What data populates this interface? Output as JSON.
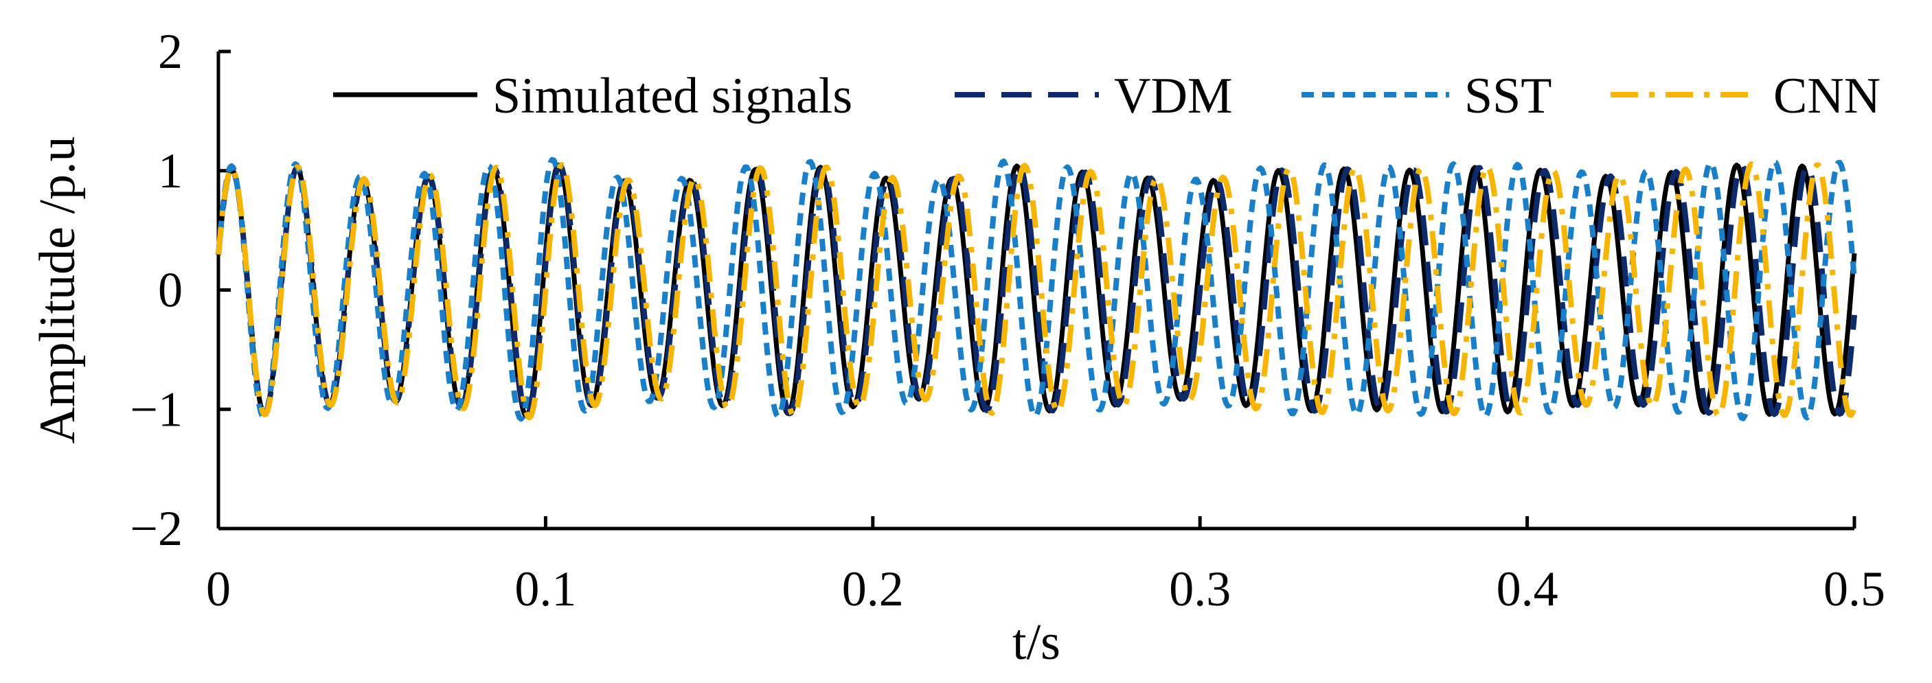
{
  "chart_data": {
    "type": "line",
    "title": "",
    "xlabel": "t/s",
    "ylabel": "Amplitude /p.u",
    "xlim": [
      0,
      0.5
    ],
    "ylim": [
      -2,
      2
    ],
    "xticks": [
      0,
      0.1,
      0.2,
      0.3,
      0.4,
      0.5
    ],
    "xtick_labels": [
      "0",
      "0.1",
      "0.2",
      "0.3",
      "0.4",
      "0.5"
    ],
    "yticks": [
      2,
      1,
      0,
      -1,
      -2
    ],
    "ytick_labels": [
      "2",
      "1",
      "0",
      "−1",
      "−2"
    ],
    "grid": false,
    "legend_position": "top",
    "signal_model": {
      "description": "approximately 50 Hz oscillation, amplitude about 0.9–1.1 p.u., 0–0.5 s",
      "sample_step": 0.0005,
      "frequency_hz": 50,
      "phase_rad": 0.3,
      "amplitude_peaks": [
        1.0,
        1.05,
        0.92,
        0.94,
        1.0,
        1.08,
        0.92,
        0.9,
        1.0,
        1.05,
        0.95,
        0.9,
        1.05,
        1.0,
        0.95,
        0.9,
        1.0,
        1.02,
        1.0,
        1.03,
        1.02,
        0.95,
        0.97,
        1.05,
        1.04
      ]
    },
    "series": [
      {
        "name": "Simulated signals",
        "color": "#000000",
        "style": "solid",
        "time_shift_s": 0.0,
        "amp_scale": 1.0
      },
      {
        "name": "VDM",
        "color": "#0d2a6b",
        "style": "dashed",
        "time_shift_s": 0.0004,
        "amp_scale": 1.0
      },
      {
        "name": "SST",
        "color": "#1a7fc9",
        "style": "dotted",
        "time_shift_s": -0.0022,
        "amp_scale": 1.03
      },
      {
        "name": "CNN",
        "color": "#f7b500",
        "style": "dashdot",
        "time_shift_s": 0.0012,
        "amp_scale": 1.01
      }
    ]
  }
}
